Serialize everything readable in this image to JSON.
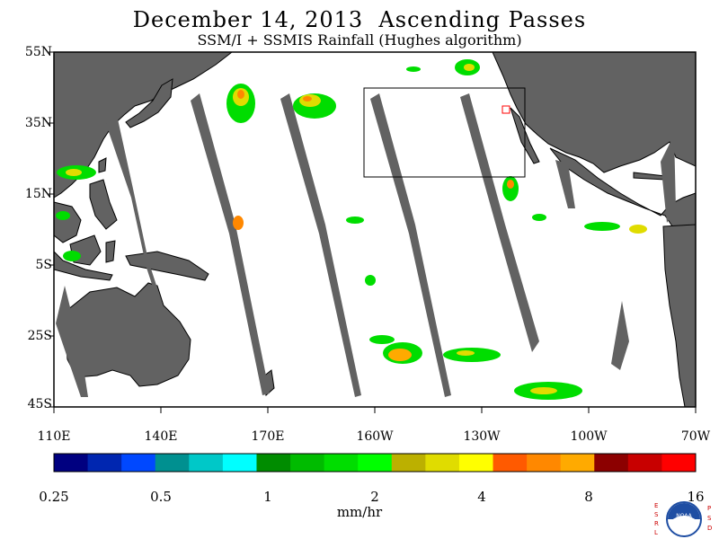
{
  "title": "December 14, 2013  Ascending Passes",
  "subtitle": "SSM/I + SSMIS Rainfall (Hughes algorithm)",
  "lat_labels": [
    "55N",
    "35N",
    "15N",
    "5S",
    "25S",
    "45S"
  ],
  "lon_labels": [
    "110E",
    "140E",
    "170E",
    "160W",
    "130W",
    "100W",
    "70W"
  ],
  "colorbar": {
    "colors": [
      "#000080",
      "#0026b0",
      "#0048ff",
      "#009090",
      "#00c8c8",
      "#00ffff",
      "#008c00",
      "#00bb00",
      "#00dd00",
      "#00ff00",
      "#bcb000",
      "#e0dc00",
      "#ffff00",
      "#ff5a00",
      "#ff8800",
      "#ffaa00",
      "#8c0000",
      "#c80000",
      "#ff0000"
    ],
    "tick_labels": [
      "0.25",
      "0.5",
      "1",
      "2",
      "4",
      "8",
      "16"
    ],
    "units": "mm/hr"
  },
  "logo": {
    "left_letters": "ESRL",
    "right_letters": "PSD",
    "center_text": "NOAA"
  },
  "colors": {
    "land": "#626262",
    "ocean": "#ffffff",
    "box": "#000000",
    "marker": "#ff0000"
  }
}
